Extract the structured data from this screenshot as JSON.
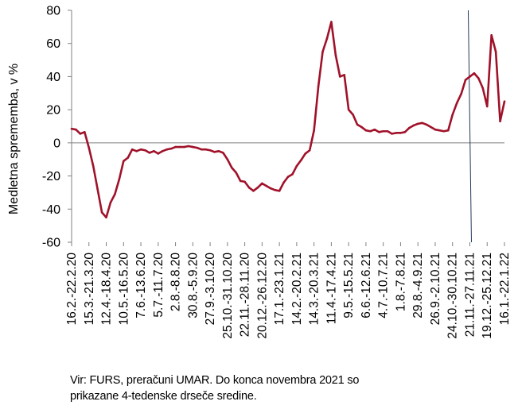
{
  "chart_data": {
    "type": "line",
    "ylabel": "Medletna sprememba, v %",
    "ylim": [
      -60,
      80
    ],
    "yticks": [
      -60,
      -40,
      -20,
      0,
      20,
      40,
      60,
      80
    ],
    "x_tick_labels": [
      "16.2.-22.2.20",
      "15.3.-21.3.20",
      "12.4.-18.4.20",
      "10.5.-16.5.20",
      "7.6.-13.6.20",
      "5.7.-11.7.20",
      "2.8.-8.8.20",
      "30.8.-5.9.20",
      "27.9.-3.10.20",
      "25.10.-31.10.20",
      "22.11.-28.11.20",
      "20.12.-26.12.20",
      "17.1.-23.1.21",
      "14.2.-20.2.21",
      "14.3.-20.3.21",
      "11.4.-17.4.21",
      "9.5.-15.5.21",
      "6.6.-12.6.21",
      "4.7.-10.7.21",
      "1.8.-7.8.21",
      "29.8.-4.9.21",
      "26.9.-2.10.21",
      "24.10.-30.10.21",
      "21.11.-27.11.21",
      "19.12.-25.12.21",
      "16.1.-22.1.22"
    ],
    "grid": false,
    "reference_line_at_tick": "21.11.-27.11.21",
    "series": [
      {
        "color": "#a0122a",
        "values": [
          8.5,
          8,
          5.5,
          6.5,
          -3,
          -14,
          -28,
          -42,
          -45,
          -36,
          -31,
          -22,
          -11,
          -9,
          -4,
          -5,
          -4,
          -4.5,
          -6,
          -5,
          -6.5,
          -5,
          -4,
          -3.5,
          -2.5,
          -2.5,
          -2.5,
          -2,
          -2.5,
          -3,
          -4,
          -4,
          -4.5,
          -5.5,
          -5,
          -6,
          -10,
          -15,
          -18,
          -23,
          -23.5,
          -27,
          -29,
          -27,
          -24.5,
          -26,
          -27.5,
          -28.5,
          -29,
          -24,
          -20.5,
          -19,
          -14,
          -10.5,
          -6.5,
          -4.5,
          7.5,
          34,
          55,
          63,
          73,
          53,
          40,
          41,
          20,
          17,
          11,
          9.5,
          7.5,
          7,
          8,
          6.5,
          7,
          7,
          5.5,
          6,
          6,
          6.5,
          9,
          10.5,
          11.5,
          12,
          11,
          9.5,
          8,
          7.5,
          7,
          7.5,
          17,
          24,
          29.5,
          38,
          40,
          42,
          39,
          33,
          22,
          65,
          55,
          13,
          25
        ]
      }
    ]
  },
  "source_note": {
    "line1": "Vir: FURS, preračuni UMAR. Do konca novembra 2021 so",
    "line2": "prikazane 4-tedenske drseče sredine."
  }
}
